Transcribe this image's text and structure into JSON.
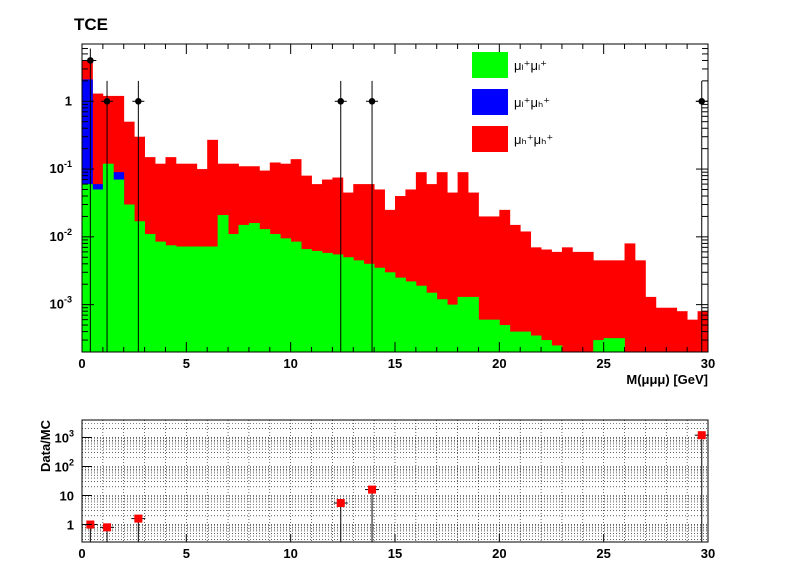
{
  "chart_data": [
    {
      "type": "bar",
      "stacked": true,
      "title": "TCE",
      "xlabel": "M(μμμ) [GeV]",
      "ylabel": "",
      "xlim": [
        0,
        30
      ],
      "ylim": [
        0.0002,
        7
      ],
      "yscale": "log",
      "x_tick_labels": [
        "0",
        "5",
        "10",
        "15",
        "20",
        "25",
        "30"
      ],
      "x_ticks": [
        0,
        5,
        10,
        15,
        20,
        25,
        30
      ],
      "y_tick_labels": [
        {
          "base": "10",
          "exp": "-3",
          "value": 0.001
        },
        {
          "base": "10",
          "exp": "-2",
          "value": 0.01
        },
        {
          "base": "10",
          "exp": "-1",
          "value": 0.1
        },
        {
          "base": "1",
          "exp": "",
          "value": 1
        }
      ],
      "legend": {
        "placement": "top-right",
        "entries": [
          {
            "label": "μₗ⁺μₗ⁺",
            "color": "#00ff00"
          },
          {
            "label": "μₗ⁺μₕ⁺",
            "color": "#0000ff"
          },
          {
            "label": "μₕ⁺μₕ⁺",
            "color": "#ff0000"
          }
        ]
      },
      "bin_width": 0.5,
      "bin_lo": [
        0,
        0.5,
        1,
        1.5,
        2,
        2.5,
        3,
        3.5,
        4,
        4.5,
        5,
        5.5,
        6,
        6.5,
        7,
        7.5,
        8,
        8.5,
        9,
        9.5,
        10,
        10.5,
        11,
        11.5,
        12,
        12.5,
        13,
        13.5,
        14,
        14.5,
        15,
        15.5,
        16,
        16.5,
        17,
        17.5,
        18,
        18.5,
        19,
        19.5,
        20,
        20.5,
        21,
        21.5,
        22,
        22.5,
        23,
        23.5,
        24,
        24.5,
        25,
        25.5,
        26,
        26.5,
        27,
        27.5,
        28,
        28.5,
        29,
        29.5
      ],
      "stack_totals": [
        {
          "name": "μₕ⁺μₕ⁺",
          "color": "#ff0000",
          "values": [
            4.0,
            1.3,
            1.2,
            1.2,
            0.5,
            0.3,
            0.15,
            0.12,
            0.15,
            0.12,
            0.12,
            0.1,
            0.27,
            0.12,
            0.12,
            0.11,
            0.11,
            0.095,
            0.125,
            0.12,
            0.14,
            0.08,
            0.06,
            0.07,
            0.075,
            0.045,
            0.06,
            0.06,
            0.05,
            0.025,
            0.04,
            0.05,
            0.09,
            0.06,
            0.09,
            0.045,
            0.09,
            0.045,
            0.02,
            0.02,
            0.025,
            0.015,
            0.012,
            0.007,
            0.0065,
            0.006,
            0.007,
            0.006,
            0.006,
            0.0045,
            0.0045,
            0.0045,
            0.008,
            0.0045,
            0.0013,
            0.0009,
            0.0009,
            0.0008,
            0.0006,
            0.0008
          ]
        },
        {
          "name": "μₗ⁺μₕ⁺",
          "color": "#0000ff",
          "values": [
            2.1,
            0.06,
            0.09,
            0.09,
            0,
            0,
            0,
            0,
            0,
            0,
            0,
            0,
            0,
            0,
            0,
            0,
            0,
            0,
            0,
            0,
            0,
            0,
            0,
            0,
            0,
            0,
            0,
            0,
            0,
            0,
            0,
            0,
            0,
            0,
            0,
            0,
            0,
            0,
            0,
            0,
            0,
            0,
            0,
            0,
            0,
            0,
            0,
            0,
            0,
            0,
            0,
            0,
            0,
            0,
            0,
            0,
            0,
            0,
            0,
            0
          ]
        },
        {
          "name": "μₗ⁺μₗ⁺",
          "color": "#00ff00",
          "values": [
            0.06,
            0.05,
            0.12,
            0.07,
            0.03,
            0.017,
            0.011,
            0.0085,
            0.0075,
            0.0072,
            0.0072,
            0.0072,
            0.0072,
            0.021,
            0.011,
            0.015,
            0.016,
            0.013,
            0.011,
            0.0095,
            0.0085,
            0.0066,
            0.0062,
            0.0058,
            0.0055,
            0.005,
            0.0045,
            0.004,
            0.0035,
            0.003,
            0.0025,
            0.0022,
            0.0019,
            0.0015,
            0.0012,
            0.001,
            0.0013,
            0.0013,
            0.0006,
            0.0006,
            0.0005,
            0.0004,
            0.0004,
            0.00035,
            0.0003,
            0.00025,
            0.0002,
            0,
            0,
            0.0003,
            0.00032,
            0.00032,
            0,
            0,
            0,
            0,
            0,
            0,
            0,
            0
          ]
        }
      ],
      "data_points": [
        {
          "x": 0.4,
          "y": 4.0,
          "xerr": 0.5,
          "yerr_up": 2.0
        },
        {
          "x": 1.2,
          "y": 1.0,
          "xerr": 0.5,
          "yerr_up": 1.0
        },
        {
          "x": 2.7,
          "y": 1.0,
          "xerr": 0.5,
          "yerr_up": 1.0
        },
        {
          "x": 12.4,
          "y": 1.0,
          "xerr": 0.5,
          "yerr_up": 1.0
        },
        {
          "x": 13.9,
          "y": 1.0,
          "xerr": 0.5,
          "yerr_up": 1.0
        },
        {
          "x": 29.7,
          "y": 1.0,
          "xerr": 0.5,
          "yerr_up": 1.0
        }
      ]
    },
    {
      "type": "scatter",
      "title": "",
      "xlabel": "",
      "ylabel": "Data/MC",
      "xlim": [
        0,
        30
      ],
      "ylim": [
        0.25,
        4000
      ],
      "yscale": "log",
      "grid": true,
      "x_tick_labels": [
        "0",
        "5",
        "10",
        "15",
        "20",
        "25",
        "30"
      ],
      "x_ticks": [
        0,
        5,
        10,
        15,
        20,
        25,
        30
      ],
      "y_tick_labels": [
        {
          "base": "1",
          "exp": "",
          "value": 1
        },
        {
          "base": "10",
          "exp": "",
          "value": 10
        },
        {
          "base": "10",
          "exp": "2",
          "value": 100
        },
        {
          "base": "10",
          "exp": "3",
          "value": 1000
        }
      ],
      "points": [
        {
          "x": 0.4,
          "y": 1.0
        },
        {
          "x": 1.2,
          "y": 0.8
        },
        {
          "x": 2.7,
          "y": 1.6
        },
        {
          "x": 12.4,
          "y": 5.5
        },
        {
          "x": 13.9,
          "y": 16
        },
        {
          "x": 29.7,
          "y": 1200
        }
      ],
      "marker_color": "#ff0000"
    }
  ]
}
